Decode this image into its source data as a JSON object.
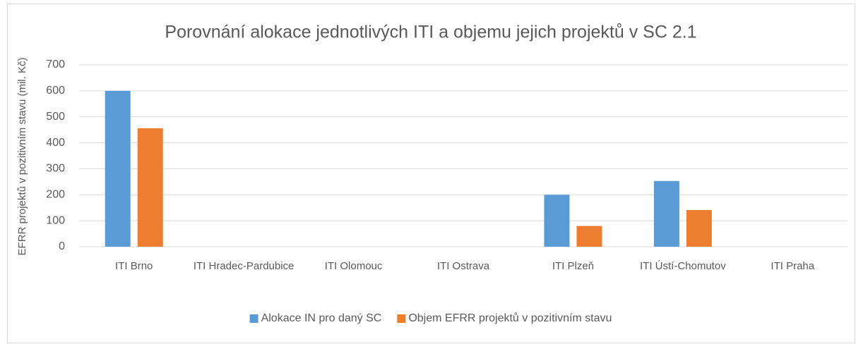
{
  "chart_data": {
    "type": "bar",
    "title": "Porovnání alokace jednotlivých ITI a objemu jejich projektů v SC 2.1",
    "y_label": "EFRR projektů v pozitivním stavu (mil. Kč)",
    "categories": [
      "ITI Brno",
      "ITI Hradec-Pardubice",
      "ITI Olomouc",
      "ITI Ostrava",
      "ITI Plzeň",
      "ITI Ústí-Chomutov",
      "ITI Praha"
    ],
    "series": [
      {
        "name": "Alokace IN pro daný SC",
        "color": "#5b9bd5",
        "values": [
          600,
          null,
          null,
          null,
          200,
          253,
          null
        ]
      },
      {
        "name": "Objem EFRR projektů v pozitivním stavu",
        "color": "#ed7d31",
        "values": [
          456,
          null,
          null,
          null,
          80,
          141,
          null
        ]
      }
    ],
    "ylim": [
      0,
      700
    ],
    "yticks": [
      0,
      100,
      200,
      300,
      400,
      500,
      600,
      700
    ],
    "grid": true,
    "legend": "bottom"
  }
}
